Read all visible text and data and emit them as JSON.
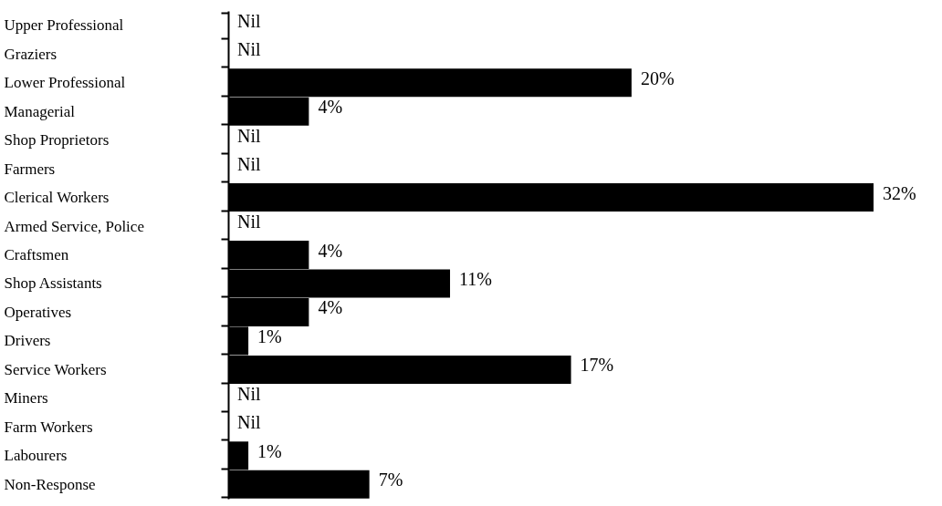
{
  "chart_data": {
    "type": "bar",
    "orientation": "horizontal",
    "categories": [
      "Upper Professional",
      "Graziers",
      "Lower Professional",
      "Managerial",
      "Shop Proprietors",
      "Farmers",
      "Clerical Workers",
      "Armed Service, Police",
      "Craftsmen",
      "Shop Assistants",
      "Operatives",
      "Drivers",
      "Service Workers",
      "Miners",
      "Farm Workers",
      "Labourers",
      "Non-Response"
    ],
    "values": [
      0,
      0,
      20,
      4,
      0,
      0,
      32,
      0,
      4,
      11,
      4,
      1,
      17,
      0,
      0,
      1,
      7
    ],
    "value_labels": [
      "Nil",
      "Nil",
      "20%",
      "4%",
      "Nil",
      "Nil",
      "32%",
      "Nil",
      "4%",
      "11%",
      "4%",
      "1%",
      "17%",
      "Nil",
      "Nil",
      "1%",
      "7%"
    ],
    "color": "#000000",
    "grid": false
  }
}
